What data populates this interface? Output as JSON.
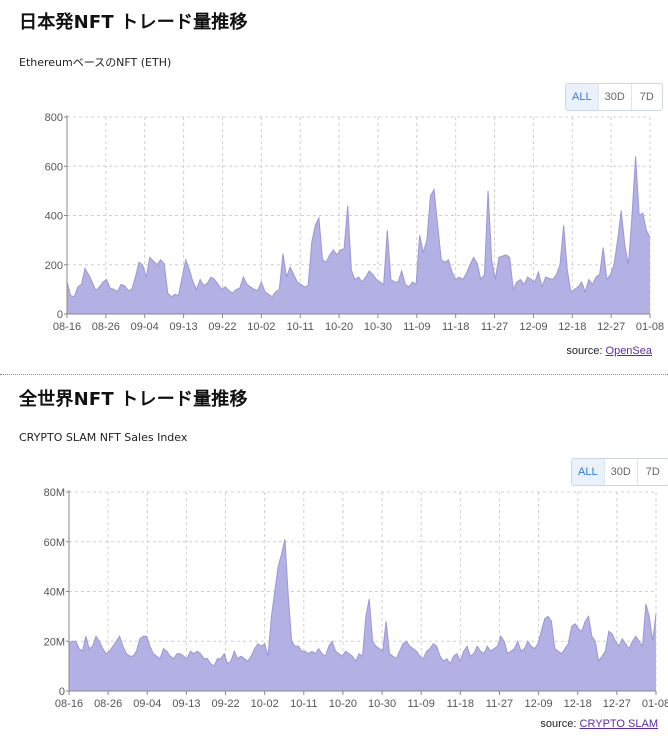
{
  "panels": [
    {
      "title": "日本発NFT トレード量推移",
      "subtitle": "EthereumベースのNFT (ETH)",
      "range_buttons": [
        {
          "label": "ALL",
          "active": true
        },
        {
          "label": "30D",
          "active": false
        },
        {
          "label": "7D",
          "active": false
        }
      ],
      "source_prefix": "source: ",
      "source_link": "OpenSea"
    },
    {
      "title": "全世界NFT トレード量推移",
      "subtitle": "CRYPTO SLAM NFT Sales Index",
      "range_buttons": [
        {
          "label": "ALL",
          "active": true
        },
        {
          "label": "30D",
          "active": false
        },
        {
          "label": "7D",
          "active": false
        }
      ],
      "source_prefix": "source: ",
      "source_link": "CRYPTO SLAM"
    }
  ],
  "colors": {
    "area_fill": "#b3b0e4",
    "area_stroke": "#9b97d9",
    "grid": "#d0d0d0",
    "axis": "#888888",
    "active_button": "#3a7bd5"
  },
  "chart_data": [
    {
      "type": "area",
      "title": "日本発NFT トレード量推移",
      "subtitle": "EthereumベースのNFT (ETH)",
      "xlabel": "",
      "ylabel": "",
      "ylim": [
        0,
        800
      ],
      "y_ticks": [
        "0",
        "200",
        "400",
        "600",
        "800"
      ],
      "x_ticks": [
        "08-16",
        "08-26",
        "09-04",
        "09-13",
        "09-22",
        "10-02",
        "10-11",
        "10-20",
        "10-30",
        "11-09",
        "11-18",
        "11-27",
        "12-09",
        "12-18",
        "12-27",
        "01-08"
      ],
      "grid": true,
      "series": [
        {
          "values": [
            130,
            75,
            70,
            110,
            120,
            185,
            160,
            130,
            95,
            110,
            130,
            140,
            105,
            100,
            90,
            120,
            115,
            95,
            100,
            150,
            210,
            200,
            150,
            230,
            215,
            200,
            220,
            205,
            85,
            70,
            80,
            75,
            150,
            220,
            180,
            130,
            100,
            140,
            115,
            125,
            150,
            140,
            120,
            100,
            110,
            95,
            85,
            100,
            105,
            150,
            120,
            110,
            100,
            95,
            130,
            90,
            80,
            70,
            90,
            100,
            245,
            150,
            190,
            160,
            130,
            120,
            110,
            115,
            290,
            360,
            390,
            220,
            210,
            240,
            260,
            240,
            260,
            265,
            440,
            180,
            140,
            150,
            130,
            150,
            175,
            160,
            140,
            130,
            120,
            340,
            140,
            130,
            130,
            175,
            120,
            110,
            130,
            120,
            320,
            250,
            300,
            480,
            505,
            360,
            220,
            210,
            220,
            170,
            140,
            150,
            140,
            165,
            200,
            230,
            205,
            140,
            160,
            500,
            220,
            140,
            230,
            235,
            240,
            230,
            100,
            130,
            140,
            120,
            150,
            140,
            130,
            170,
            110,
            150,
            145,
            140,
            160,
            200,
            360,
            180,
            90,
            100,
            110,
            130,
            90,
            140,
            120,
            150,
            160,
            270,
            140,
            160,
            200,
            300,
            420,
            280,
            200,
            400,
            640,
            400,
            410,
            340,
            310
          ],
          "x_start": "08-16",
          "x_end": "01-08"
        }
      ]
    },
    {
      "type": "area",
      "title": "全世界NFT トレード量推移",
      "subtitle": "CRYPTO SLAM NFT Sales Index",
      "xlabel": "",
      "ylabel": "",
      "ylim": [
        0,
        80000000
      ],
      "y_ticks": [
        "0",
        "20M",
        "40M",
        "60M",
        "80M"
      ],
      "x_ticks": [
        "08-16",
        "08-26",
        "09-04",
        "09-13",
        "09-22",
        "10-02",
        "10-11",
        "10-20",
        "10-30",
        "11-09",
        "11-18",
        "11-27",
        "12-09",
        "12-18",
        "12-27",
        "01-08"
      ],
      "grid": true,
      "series": [
        {
          "values": [
            19,
            20,
            20,
            17,
            16,
            22,
            17,
            18,
            22,
            20,
            17,
            15,
            16,
            18,
            20,
            22,
            18,
            15,
            14,
            14,
            16,
            21,
            22,
            22,
            18,
            15,
            14,
            13,
            17,
            16,
            14,
            13,
            15,
            15,
            14,
            13,
            16,
            15,
            16,
            15,
            13,
            13,
            11,
            10,
            13,
            13,
            15,
            11,
            12,
            16,
            13,
            14,
            13,
            12,
            14,
            17,
            19,
            18,
            19,
            14,
            30,
            40,
            50,
            55,
            61,
            38,
            20,
            18,
            18,
            16,
            16,
            15,
            16,
            15,
            17,
            15,
            14,
            18,
            20,
            16,
            15,
            14,
            16,
            15,
            14,
            12,
            15,
            14,
            30,
            37,
            20,
            18,
            17,
            16,
            28,
            15,
            14,
            13,
            16,
            19,
            20,
            18,
            17,
            16,
            14,
            13,
            16,
            17,
            19,
            18,
            14,
            12,
            13,
            11,
            14,
            15,
            12,
            16,
            18,
            14,
            15,
            18,
            16,
            15,
            18,
            16,
            17,
            18,
            22,
            20,
            15,
            16,
            17,
            20,
            16,
            17,
            20,
            18,
            17,
            19,
            24,
            29,
            30,
            28,
            17,
            16,
            15,
            17,
            19,
            26,
            27,
            25,
            24,
            28,
            30,
            22,
            20,
            12,
            14,
            16,
            24,
            23,
            20,
            18,
            21,
            19,
            17,
            20,
            22,
            20,
            18,
            35,
            30,
            20,
            31
          ],
          "value_scale": "M",
          "x_start": "08-16",
          "x_end": "01-08"
        }
      ]
    }
  ]
}
